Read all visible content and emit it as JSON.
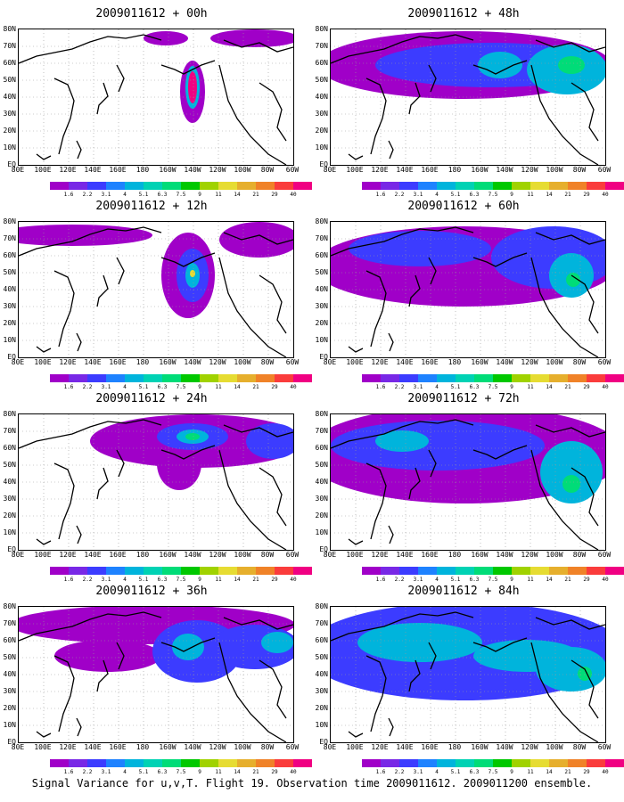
{
  "caption": "Signal Variance for u,v,T. Flight 19. Observation time 2009011612. 2009011200 ensemble.",
  "panels": [
    {
      "title": "2009011612 + 00h",
      "col": 0,
      "row": 0
    },
    {
      "title": "2009011612 + 12h",
      "col": 0,
      "row": 1
    },
    {
      "title": "2009011612 + 24h",
      "col": 0,
      "row": 2
    },
    {
      "title": "2009011612 + 36h",
      "col": 0,
      "row": 3
    },
    {
      "title": "2009011612 + 48h",
      "col": 1,
      "row": 0
    },
    {
      "title": "2009011612 + 60h",
      "col": 1,
      "row": 1
    },
    {
      "title": "2009011612 + 72h",
      "col": 1,
      "row": 2
    },
    {
      "title": "2009011612 + 84h",
      "col": 1,
      "row": 3
    }
  ],
  "lat_labels": [
    "80N",
    "70N",
    "60N",
    "50N",
    "40N",
    "30N",
    "20N",
    "10N",
    "EQ"
  ],
  "lon_labels": [
    "80E",
    "100E",
    "120E",
    "140E",
    "160E",
    "180",
    "160W",
    "140W",
    "120W",
    "100W",
    "80W",
    "60W"
  ],
  "colorbar": {
    "levels": [
      "1.6",
      "2.2",
      "3.1",
      "4",
      "5.1",
      "6.3",
      "7.5",
      "9",
      "11",
      "14",
      "21",
      "29",
      "40"
    ],
    "colors": [
      "#a000c8",
      "#7828e6",
      "#3c3cff",
      "#1e82ff",
      "#00b4dc",
      "#00d2b4",
      "#00dc78",
      "#00c800",
      "#a0d200",
      "#e6dc32",
      "#e6af2d",
      "#f08228",
      "#fa3c3c",
      "#f00082"
    ]
  }
}
